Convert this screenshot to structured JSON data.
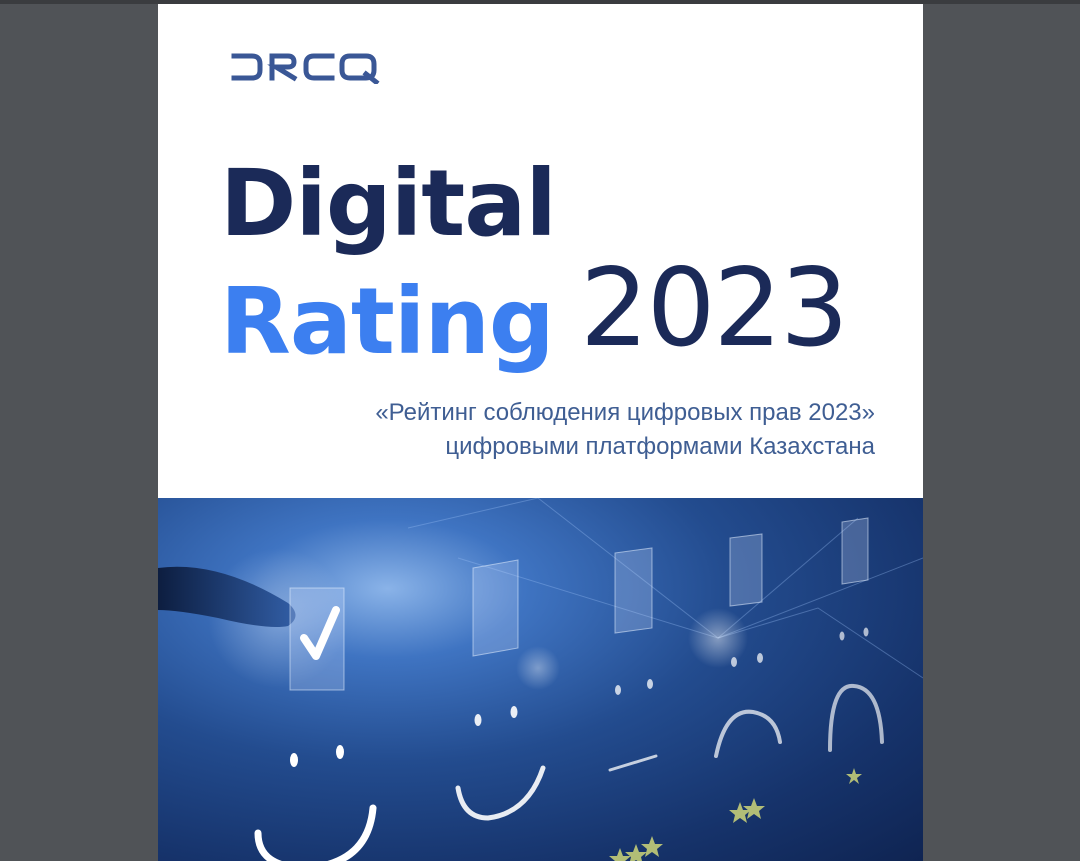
{
  "colors": {
    "navy": "#1b2a58",
    "blue": "#3c7ff0",
    "subtitle": "#3f5e93",
    "logo": "#3a5796",
    "viewer_bg": "#505357"
  },
  "logo": {
    "text": "DRCQ",
    "icon": "drcq-logo"
  },
  "title": {
    "line1": "Digital",
    "line2": "Rating",
    "year": "2023"
  },
  "subtitle": {
    "line1": "«Рейтинг соблюдения цифровых прав 2023»",
    "line2": "цифровыми платформами Казахстана"
  },
  "hero_image": {
    "icons": [
      "checkmark-icon",
      "smiley-face-icon",
      "neutral-face-icon",
      "frown-face-icon",
      "star-icon"
    ]
  }
}
